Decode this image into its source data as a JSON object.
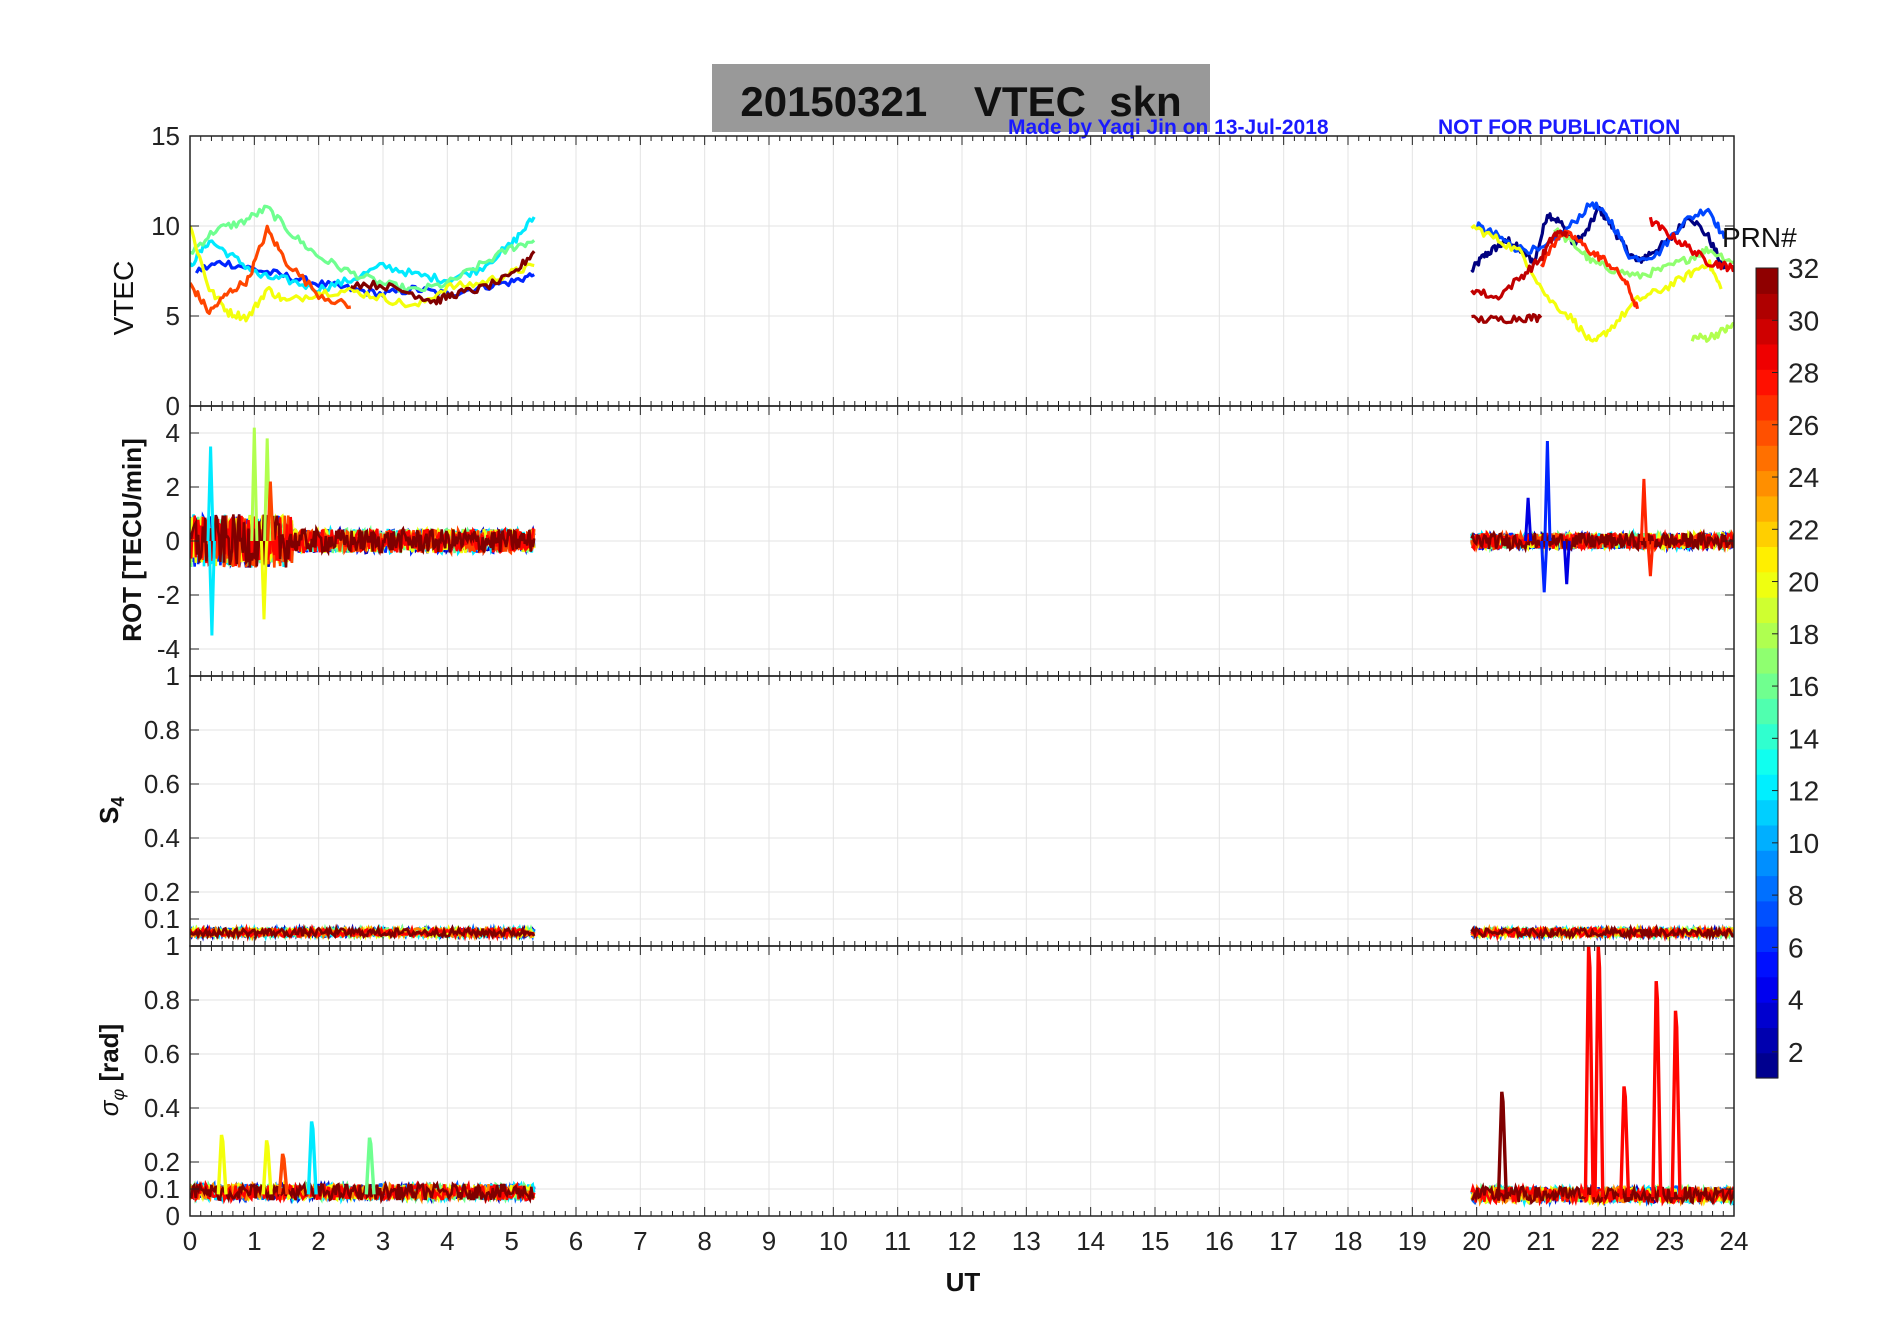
{
  "figure": {
    "title": "20150321    VTEC  skn",
    "credit": "Made by Yaqi Jin on 13-Jul-2018",
    "notice": "NOT FOR PUBLICATION",
    "title_box_color": "#999999",
    "credit_color": "#1a1aff"
  },
  "chart_data": [
    {
      "type": "line",
      "id": "vtec",
      "ylabel": "VTEC",
      "xlim": [
        0,
        24
      ],
      "ylim": [
        0,
        15
      ],
      "yticks": [
        0,
        5,
        10,
        15
      ],
      "grid": true,
      "series": [
        {
          "color_prn": 1,
          "x": [
            19.92,
            20.1,
            20.3,
            20.5,
            20.7,
            20.9,
            21.1,
            21.3,
            21.5,
            21.7,
            21.9,
            22.1,
            22.3,
            22.5,
            22.7,
            23.0,
            23.3,
            23.6,
            23.85
          ],
          "y": [
            7.5,
            8.3,
            8.8,
            9.2,
            8.6,
            8.0,
            10.7,
            10.2,
            9.0,
            9.6,
            11.0,
            10.0,
            8.8,
            8.0,
            8.5,
            9.2,
            10.6,
            9.4,
            7.6
          ]
        },
        {
          "color_prn": 6,
          "x": [
            0.1,
            0.5,
            1.0,
            1.5,
            2.0,
            2.5,
            3.0,
            3.5,
            4.0,
            4.5,
            5.0,
            5.35
          ],
          "y": [
            7.5,
            8.0,
            7.6,
            7.2,
            6.8,
            6.5,
            6.2,
            6.5,
            6.2,
            6.6,
            6.9,
            7.3
          ]
        },
        {
          "color_prn": 7,
          "x": [
            20.0,
            20.3,
            20.6,
            21.0,
            21.4,
            21.8,
            22.1,
            22.4,
            22.8,
            23.2,
            23.6,
            23.85
          ],
          "y": [
            10.0,
            9.5,
            8.8,
            8.6,
            9.8,
            11.3,
            10.2,
            8.2,
            8.4,
            10.2,
            11.0,
            9.3
          ]
        },
        {
          "color_prn": 12,
          "x": [
            0.0,
            0.3,
            0.7,
            1.1,
            1.5,
            2.0,
            2.5,
            3.0,
            3.5,
            4.0,
            4.5,
            5.0,
            5.35
          ],
          "y": [
            7.8,
            9.2,
            8.2,
            7.2,
            7.0,
            6.5,
            7.0,
            7.8,
            7.3,
            7.0,
            7.6,
            9.0,
            10.5
          ]
        },
        {
          "color_prn": 16,
          "x": [
            0.0,
            0.4,
            0.8,
            1.2,
            1.6,
            2.0,
            2.5,
            3.0,
            3.5,
            4.0,
            4.5,
            5.0,
            5.35
          ],
          "y": [
            8.5,
            9.8,
            10.2,
            11.0,
            9.5,
            8.3,
            7.4,
            6.8,
            6.4,
            6.8,
            7.8,
            8.8,
            9.2
          ]
        },
        {
          "color_prn": 17,
          "x": [
            21.2,
            21.5,
            21.8,
            22.1,
            22.5,
            22.9,
            23.3,
            23.6,
            24.0
          ],
          "y": [
            9.8,
            9.0,
            8.0,
            7.6,
            7.2,
            7.6,
            8.2,
            8.7,
            8.0
          ]
        },
        {
          "color_prn": 20,
          "x": [
            0.0,
            0.3,
            0.6,
            0.9,
            1.2,
            1.5,
            2.0,
            2.5,
            3.0,
            3.5,
            4.0,
            4.5,
            5.0,
            5.35
          ],
          "y": [
            10.0,
            6.5,
            5.2,
            4.9,
            6.5,
            5.8,
            6.3,
            6.4,
            6.0,
            5.5,
            6.6,
            6.8,
            7.4,
            7.8
          ]
        },
        {
          "color_prn": 20,
          "x": [
            19.92,
            20.3,
            20.7,
            21.1,
            21.5,
            21.8,
            22.1,
            22.5,
            22.9,
            23.3,
            23.6,
            23.8
          ],
          "y": [
            10.0,
            9.3,
            8.5,
            6.0,
            4.8,
            3.4,
            4.4,
            5.9,
            6.5,
            7.3,
            8.0,
            6.5
          ]
        },
        {
          "color_prn": 18,
          "x": [
            23.35,
            23.6,
            23.85,
            24.0
          ],
          "y": [
            3.8,
            3.8,
            4.2,
            4.5
          ]
        },
        {
          "color_prn": 26,
          "x": [
            0.0,
            0.3,
            0.6,
            0.9,
            1.2,
            1.5,
            2.0,
            2.5
          ],
          "y": [
            6.8,
            5.2,
            6.3,
            7.0,
            9.8,
            8.0,
            6.2,
            5.5
          ]
        },
        {
          "color_prn": 27,
          "x": [
            21.0,
            21.3,
            21.5,
            21.8,
            22.0,
            22.3,
            22.5
          ],
          "y": [
            7.8,
            9.6,
            9.4,
            8.5,
            8.1,
            7.0,
            5.4
          ]
        },
        {
          "color_prn": 29,
          "x": [
            22.7,
            23.0,
            23.3,
            23.6,
            23.85,
            24.0
          ],
          "y": [
            10.3,
            9.5,
            8.8,
            8.0,
            7.8,
            7.6
          ]
        },
        {
          "color_prn": 30,
          "x": [
            19.92,
            20.3,
            20.7,
            21.0,
            21.2,
            21.4
          ],
          "y": [
            6.5,
            6.0,
            7.2,
            8.2,
            9.5,
            9.7
          ]
        },
        {
          "color_prn": 31,
          "x": [
            19.92,
            20.3,
            20.7,
            21.0
          ],
          "y": [
            4.8,
            4.8,
            4.9,
            4.9
          ]
        },
        {
          "color_prn": 32,
          "x": [
            2.5,
            3.0,
            3.5,
            3.8,
            4.1,
            4.5,
            5.0,
            5.35
          ],
          "y": [
            6.8,
            6.7,
            6.2,
            5.8,
            6.2,
            6.5,
            7.2,
            8.6
          ]
        }
      ]
    },
    {
      "type": "line",
      "id": "rot",
      "ylabel": "ROT [TECU/min]",
      "xlim": [
        0,
        24
      ],
      "ylim": [
        -5,
        5
      ],
      "yticks": [
        -4,
        -2,
        0,
        2,
        4
      ],
      "grid": true,
      "segments": [
        {
          "x0": 0.0,
          "x1": 5.35,
          "amplitude": 0.45
        },
        {
          "x0": 19.92,
          "x1": 24.0,
          "amplitude": 0.3
        }
      ],
      "spikes": [
        {
          "color_prn": 12,
          "x": 0.32,
          "y": 3.5
        },
        {
          "color_prn": 12,
          "x": 0.34,
          "y": -3.5
        },
        {
          "color_prn": 18,
          "x": 1.0,
          "y": 4.2
        },
        {
          "color_prn": 18,
          "x": 1.2,
          "y": 3.8
        },
        {
          "color_prn": 20,
          "x": 1.15,
          "y": -2.9
        },
        {
          "color_prn": 26,
          "x": 1.25,
          "y": 2.2
        },
        {
          "color_prn": 6,
          "x": 21.1,
          "y": 3.7
        },
        {
          "color_prn": 6,
          "x": 21.05,
          "y": -1.9
        },
        {
          "color_prn": 4,
          "x": 20.8,
          "y": 1.6
        },
        {
          "color_prn": 4,
          "x": 21.4,
          "y": -1.6
        },
        {
          "color_prn": 27,
          "x": 22.6,
          "y": 2.3
        },
        {
          "color_prn": 27,
          "x": 22.7,
          "y": -1.3
        }
      ]
    },
    {
      "type": "line",
      "id": "s4",
      "ylabel": "S4",
      "xlim": [
        0,
        24
      ],
      "ylim": [
        0,
        1
      ],
      "yticks": [
        0.1,
        0.2,
        0.4,
        0.6,
        0.8,
        1
      ],
      "grid": true,
      "segments": [
        {
          "x0": 0.0,
          "x1": 5.35,
          "level": 0.05
        },
        {
          "x0": 19.92,
          "x1": 24.0,
          "level": 0.05
        }
      ]
    },
    {
      "type": "line",
      "id": "sigma_phi",
      "ylabel": "σφ [rad]",
      "xlabel": "UT",
      "xlim": [
        0,
        24
      ],
      "ylim": [
        0,
        1
      ],
      "yticks": [
        0,
        0.1,
        0.2,
        0.4,
        0.6,
        0.8,
        1
      ],
      "xticks": [
        0,
        1,
        2,
        3,
        4,
        5,
        6,
        7,
        8,
        9,
        10,
        11,
        12,
        13,
        14,
        15,
        16,
        17,
        18,
        19,
        20,
        21,
        22,
        23,
        24
      ],
      "grid": true,
      "segments": [
        {
          "x0": 0.0,
          "x1": 5.35,
          "level": 0.08
        },
        {
          "x0": 19.92,
          "x1": 24.0,
          "level": 0.07
        }
      ],
      "peaks": [
        {
          "color_prn": 20,
          "x": 0.5,
          "y": 0.3
        },
        {
          "color_prn": 20,
          "x": 1.2,
          "y": 0.28
        },
        {
          "color_prn": 26,
          "x": 1.45,
          "y": 0.23
        },
        {
          "color_prn": 12,
          "x": 1.9,
          "y": 0.35
        },
        {
          "color_prn": 16,
          "x": 2.8,
          "y": 0.29
        },
        {
          "color_prn": 32,
          "x": 20.4,
          "y": 0.46
        },
        {
          "color_prn": 28,
          "x": 21.75,
          "y": 1.0
        },
        {
          "color_prn": 28,
          "x": 21.9,
          "y": 1.0
        },
        {
          "color_prn": 28,
          "x": 22.3,
          "y": 0.48
        },
        {
          "color_prn": 28,
          "x": 22.8,
          "y": 0.87
        },
        {
          "color_prn": 28,
          "x": 23.1,
          "y": 0.76
        }
      ]
    }
  ],
  "colorbar": {
    "label": "PRN#",
    "ticks": [
      2,
      4,
      6,
      8,
      10,
      12,
      14,
      16,
      18,
      20,
      22,
      24,
      26,
      28,
      30,
      32
    ],
    "range": [
      1,
      32
    ],
    "colormap": "jet"
  }
}
